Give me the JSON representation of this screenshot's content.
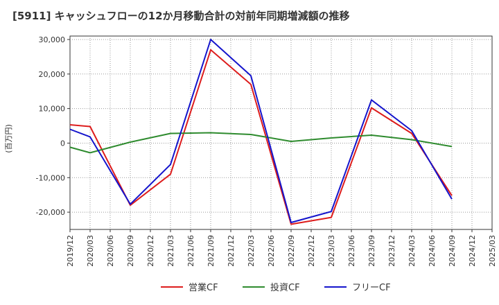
{
  "chart_data": {
    "type": "line",
    "title": "[5911]  キャッシュフローの12か月移動合計の対前年同期増減額の推移",
    "ylabel": "(百万円)",
    "xlabel": "",
    "ylim": [
      -25000,
      31000
    ],
    "yticks": [
      30000,
      20000,
      10000,
      0,
      -10000,
      -20000
    ],
    "ytick_labels": [
      "30,000",
      "20,000",
      "10,000",
      "0",
      "-10,000",
      "-20,000"
    ],
    "categories": [
      "2019/12",
      "2020/03",
      "2020/06",
      "2020/09",
      "2020/12",
      "2021/03",
      "2021/06",
      "2021/09",
      "2021/12",
      "2022/03",
      "2022/06",
      "2022/09",
      "2022/12",
      "2023/03",
      "2023/06",
      "2023/09",
      "2023/12",
      "2024/03",
      "2024/06",
      "2024/09",
      "2024/12",
      "2025/03"
    ],
    "grid": true,
    "legend_position": "bottom",
    "series": [
      {
        "name": "営業CF",
        "color": "#dd1c1c",
        "values": [
          5300,
          4800,
          null,
          -18000,
          null,
          -9000,
          null,
          27000,
          null,
          17000,
          null,
          -23500,
          null,
          -21500,
          null,
          10200,
          null,
          2800,
          null,
          -15200,
          null,
          null
        ]
      },
      {
        "name": "投資CF",
        "color": "#2e8b2e",
        "values": [
          -1200,
          -2800,
          null,
          300,
          null,
          2800,
          null,
          3000,
          null,
          2500,
          null,
          500,
          null,
          1500,
          null,
          2300,
          null,
          1000,
          null,
          -1000,
          null,
          null
        ]
      },
      {
        "name": "フリーCF",
        "color": "#1414cc",
        "values": [
          4000,
          1800,
          null,
          -17700,
          null,
          -6200,
          null,
          30000,
          null,
          19500,
          null,
          -23000,
          null,
          -19800,
          null,
          12500,
          null,
          3600,
          null,
          -16200,
          null,
          null
        ]
      }
    ]
  }
}
